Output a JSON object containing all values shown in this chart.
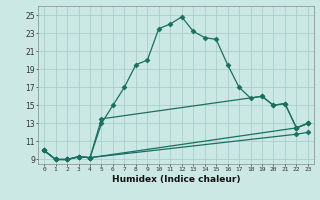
{
  "xlabel": "Humidex (Indice chaleur)",
  "bg_color": "#cce8e4",
  "grid_color": "#a0ccc8",
  "line_color": "#1a7060",
  "xlim": [
    -0.5,
    23.5
  ],
  "ylim": [
    8.5,
    26
  ],
  "xticks": [
    0,
    1,
    2,
    3,
    4,
    5,
    6,
    7,
    8,
    9,
    10,
    11,
    12,
    13,
    14,
    15,
    16,
    17,
    18,
    19,
    20,
    21,
    22,
    23
  ],
  "yticks": [
    9,
    11,
    13,
    15,
    17,
    19,
    21,
    23,
    25
  ],
  "series": [
    {
      "x": [
        0,
        1,
        2,
        3,
        4,
        5,
        6,
        7,
        8,
        9,
        10,
        11,
        12,
        13,
        14,
        15,
        16,
        17,
        18,
        19,
        20,
        21,
        22,
        23
      ],
      "y": [
        10,
        9,
        9,
        9.3,
        9.2,
        13,
        15,
        17,
        19.5,
        20,
        23.5,
        24,
        24.8,
        23.2,
        22.5,
        22.3,
        19.5,
        17,
        15.8,
        16,
        15,
        15.2,
        12.5,
        13
      ]
    },
    {
      "x": [
        0,
        1,
        2,
        3,
        4,
        5,
        19,
        20,
        21,
        22,
        23
      ],
      "y": [
        10,
        9,
        9,
        9.3,
        9.2,
        13.5,
        16,
        15,
        15.2,
        12.5,
        13
      ]
    },
    {
      "x": [
        0,
        1,
        2,
        3,
        4,
        22,
        23
      ],
      "y": [
        10,
        9,
        9,
        9.3,
        9.2,
        12.5,
        13
      ]
    },
    {
      "x": [
        0,
        1,
        2,
        3,
        4,
        22,
        23
      ],
      "y": [
        10,
        9,
        9,
        9.3,
        9.2,
        11.8,
        12
      ]
    }
  ],
  "marker": "D",
  "markersize": 2.5,
  "linewidth": 0.9
}
